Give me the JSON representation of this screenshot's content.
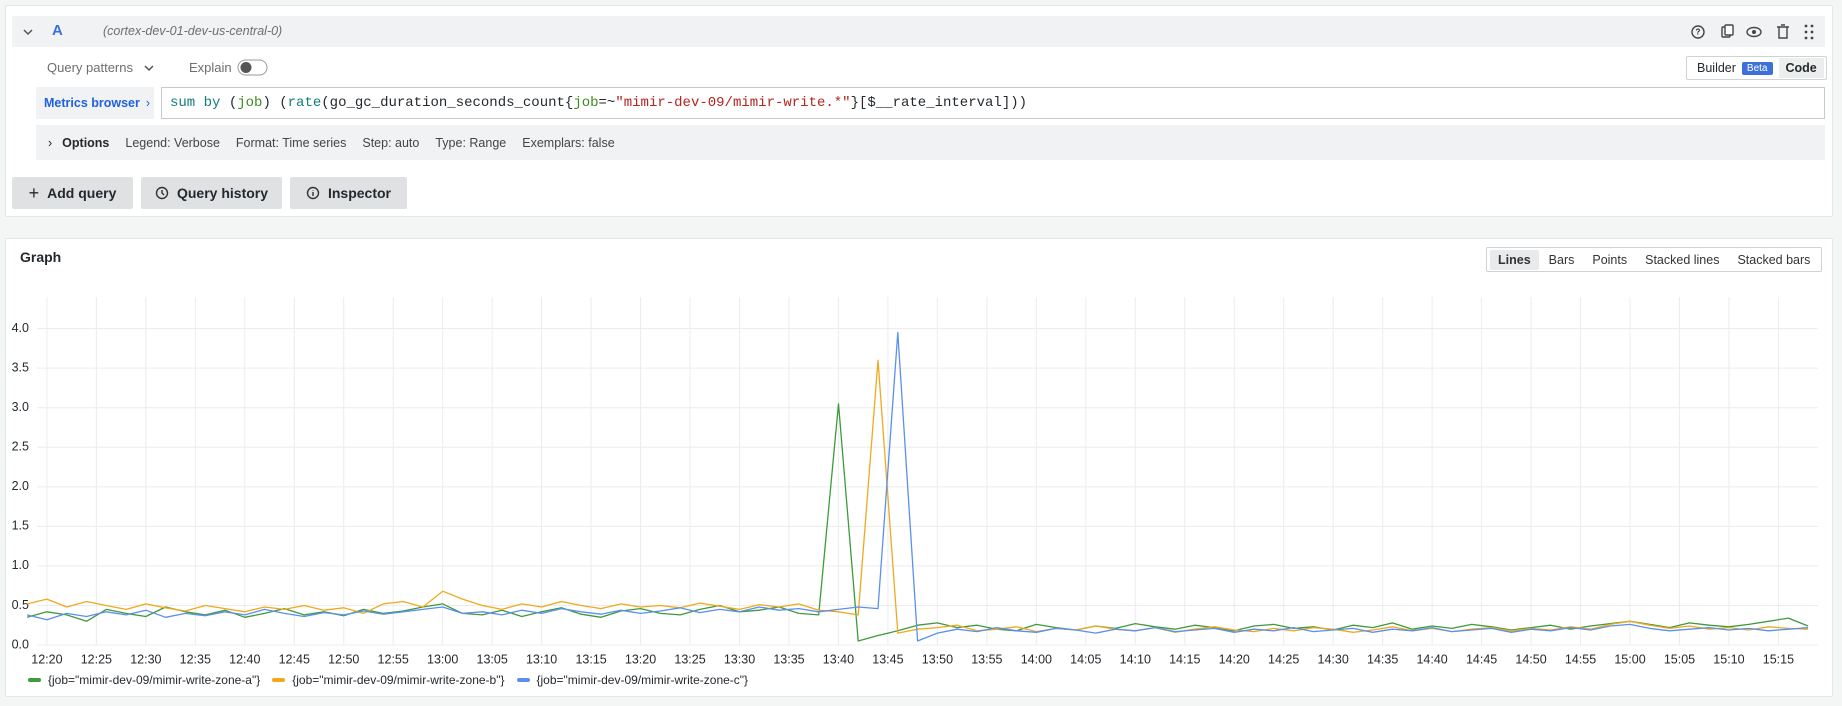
{
  "query_row": {
    "ref_id": "A",
    "datasource": "(cortex-dev-01-dev-us-central-0)",
    "query_patterns": "Query patterns",
    "explain": "Explain",
    "mode": {
      "builder": "Builder",
      "badge": "Beta",
      "code": "Code"
    },
    "metrics_browser": "Metrics browser",
    "query_segments": [
      "sum by ",
      "(",
      "job",
      ") (",
      "rate",
      "(go_gc_duration_seconds_count{",
      "job",
      "=~",
      "\"mimir-dev-09/mimir-write.*\"",
      "}[$__rate_interval]))"
    ],
    "options": {
      "label": "Options",
      "items": [
        "Legend: Verbose",
        "Format: Time series",
        "Step: auto",
        "Type: Range",
        "Exemplars: false"
      ]
    }
  },
  "buttons": [
    "Add query",
    "Query history",
    "Inspector"
  ],
  "graph_panel": {
    "title": "Graph",
    "display_modes": [
      "Lines",
      "Bars",
      "Points",
      "Stacked lines",
      "Stacked bars"
    ],
    "selected_mode": "Lines"
  },
  "chart_data": {
    "type": "line",
    "grid": true,
    "x": [
      "12:18",
      "12:20",
      "12:22",
      "12:24",
      "12:26",
      "12:28",
      "12:30",
      "12:32",
      "12:34",
      "12:36",
      "12:38",
      "12:40",
      "12:42",
      "12:44",
      "12:46",
      "12:48",
      "12:50",
      "12:52",
      "12:54",
      "12:56",
      "12:58",
      "13:00",
      "13:02",
      "13:04",
      "13:06",
      "13:08",
      "13:10",
      "13:12",
      "13:14",
      "13:16",
      "13:18",
      "13:20",
      "13:22",
      "13:24",
      "13:26",
      "13:28",
      "13:30",
      "13:32",
      "13:34",
      "13:36",
      "13:38",
      "13:40",
      "13:42",
      "13:44",
      "13:46",
      "13:48",
      "13:50",
      "13:52",
      "13:54",
      "13:56",
      "13:58",
      "14:00",
      "14:02",
      "14:04",
      "14:06",
      "14:08",
      "14:10",
      "14:12",
      "14:14",
      "14:16",
      "14:18",
      "14:20",
      "14:22",
      "14:24",
      "14:26",
      "14:28",
      "14:30",
      "14:32",
      "14:34",
      "14:36",
      "14:38",
      "14:40",
      "14:42",
      "14:44",
      "14:46",
      "14:48",
      "14:50",
      "14:52",
      "14:54",
      "14:56",
      "14:58",
      "15:00",
      "15:02",
      "15:04",
      "15:06",
      "15:08",
      "15:10",
      "15:12",
      "15:14",
      "15:16",
      "15:18"
    ],
    "xlim": [
      "12:19",
      "15:19"
    ],
    "xticks": [
      "12:20",
      "12:25",
      "12:30",
      "12:35",
      "12:40",
      "12:45",
      "12:50",
      "12:55",
      "13:00",
      "13:05",
      "13:10",
      "13:15",
      "13:20",
      "13:25",
      "13:30",
      "13:35",
      "13:40",
      "13:45",
      "13:50",
      "13:55",
      "14:00",
      "14:05",
      "14:10",
      "14:15",
      "14:20",
      "14:25",
      "14:30",
      "14:35",
      "14:40",
      "14:45",
      "14:50",
      "14:55",
      "15:00",
      "15:05",
      "15:10",
      "15:15"
    ],
    "ylim": [
      0,
      4.4
    ],
    "yticks": [
      {
        "value": 0,
        "label": "0.0"
      },
      0.5,
      {
        "value": 1,
        "label": "1.0"
      },
      1.5,
      {
        "value": 2,
        "label": "2.0"
      },
      2.5,
      {
        "value": 3,
        "label": "3.0"
      },
      3.5,
      {
        "value": 4,
        "label": "4.0"
      }
    ],
    "series": [
      {
        "name": "{job=\"mimir-dev-09/mimir-write-zone-a\"}",
        "color": "#3f9a3a",
        "values": [
          0.35,
          0.42,
          0.38,
          0.3,
          0.45,
          0.4,
          0.36,
          0.48,
          0.42,
          0.38,
          0.44,
          0.35,
          0.4,
          0.46,
          0.38,
          0.42,
          0.37,
          0.45,
          0.4,
          0.43,
          0.48,
          0.52,
          0.4,
          0.38,
          0.44,
          0.36,
          0.42,
          0.47,
          0.39,
          0.35,
          0.43,
          0.46,
          0.4,
          0.38,
          0.45,
          0.5,
          0.42,
          0.44,
          0.48,
          0.4,
          0.38,
          3.05,
          0.05,
          0.12,
          0.18,
          0.25,
          0.28,
          0.22,
          0.25,
          0.2,
          0.18,
          0.26,
          0.22,
          0.19,
          0.24,
          0.21,
          0.27,
          0.23,
          0.2,
          0.25,
          0.22,
          0.18,
          0.24,
          0.26,
          0.21,
          0.23,
          0.19,
          0.25,
          0.22,
          0.28,
          0.2,
          0.24,
          0.21,
          0.26,
          0.23,
          0.19,
          0.22,
          0.25,
          0.2,
          0.24,
          0.27,
          0.3,
          0.26,
          0.22,
          0.28,
          0.25,
          0.23,
          0.26,
          0.3,
          0.34,
          0.24
        ]
      },
      {
        "name": "{job=\"mimir-dev-09/mimir-write-zone-b\"}",
        "color": "#f0a91e",
        "values": [
          0.52,
          0.58,
          0.48,
          0.55,
          0.5,
          0.45,
          0.52,
          0.47,
          0.43,
          0.5,
          0.46,
          0.42,
          0.48,
          0.45,
          0.5,
          0.44,
          0.47,
          0.4,
          0.52,
          0.55,
          0.48,
          0.68,
          0.58,
          0.5,
          0.45,
          0.52,
          0.48,
          0.55,
          0.5,
          0.46,
          0.52,
          0.48,
          0.5,
          0.47,
          0.53,
          0.49,
          0.45,
          0.51,
          0.48,
          0.52,
          0.44,
          0.42,
          0.38,
          3.6,
          0.15,
          0.2,
          0.22,
          0.25,
          0.18,
          0.2,
          0.23,
          0.17,
          0.21,
          0.19,
          0.24,
          0.2,
          0.18,
          0.22,
          0.16,
          0.2,
          0.23,
          0.19,
          0.17,
          0.21,
          0.18,
          0.22,
          0.2,
          0.16,
          0.19,
          0.23,
          0.18,
          0.21,
          0.17,
          0.2,
          0.22,
          0.18,
          0.21,
          0.19,
          0.23,
          0.2,
          0.26,
          0.3,
          0.25,
          0.21,
          0.24,
          0.2,
          0.22,
          0.19,
          0.23,
          0.21,
          0.2
        ]
      },
      {
        "name": "{job=\"mimir-dev-09/mimir-write-zone-c\"}",
        "color": "#5b8ff0",
        "values": [
          0.38,
          0.32,
          0.4,
          0.36,
          0.42,
          0.38,
          0.44,
          0.35,
          0.4,
          0.37,
          0.42,
          0.38,
          0.45,
          0.4,
          0.36,
          0.41,
          0.38,
          0.43,
          0.39,
          0.42,
          0.45,
          0.48,
          0.4,
          0.42,
          0.38,
          0.44,
          0.4,
          0.46,
          0.42,
          0.39,
          0.44,
          0.4,
          0.43,
          0.47,
          0.41,
          0.45,
          0.42,
          0.48,
          0.44,
          0.46,
          0.42,
          0.45,
          0.48,
          0.46,
          3.95,
          0.05,
          0.15,
          0.2,
          0.17,
          0.22,
          0.18,
          0.16,
          0.21,
          0.19,
          0.15,
          0.2,
          0.18,
          0.22,
          0.17,
          0.19,
          0.21,
          0.16,
          0.2,
          0.18,
          0.22,
          0.17,
          0.19,
          0.21,
          0.16,
          0.2,
          0.18,
          0.22,
          0.17,
          0.19,
          0.21,
          0.16,
          0.2,
          0.18,
          0.22,
          0.19,
          0.24,
          0.26,
          0.21,
          0.18,
          0.2,
          0.22,
          0.19,
          0.21,
          0.18,
          0.2,
          0.22
        ]
      }
    ]
  }
}
